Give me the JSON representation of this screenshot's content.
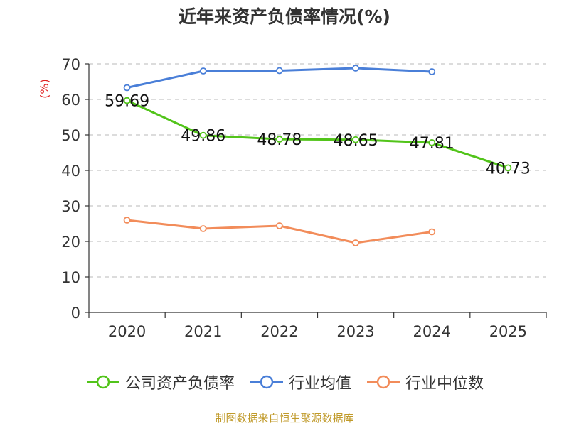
{
  "chart_data": {
    "type": "line",
    "title": "近年来资产负债率情况(%)",
    "ylabel": "(%)",
    "xlabel": "",
    "categories": [
      "2020",
      "2021",
      "2022",
      "2023",
      "2024",
      "2025"
    ],
    "ylim": [
      0,
      70
    ],
    "yticks": [
      0,
      10,
      20,
      30,
      40,
      50,
      60,
      70
    ],
    "grid": true,
    "legend_position": "bottom",
    "series": [
      {
        "name": "公司资产负债率",
        "color": "#52c41a",
        "values": [
          59.69,
          49.86,
          48.78,
          48.65,
          47.81,
          40.73
        ],
        "labels": [
          "59.69",
          "49.86",
          "48.78",
          "48.65",
          "47.81",
          "40.73"
        ]
      },
      {
        "name": "行业均值",
        "color": "#4a7fd8",
        "values": [
          63.3,
          68.0,
          68.1,
          68.8,
          67.8,
          null
        ]
      },
      {
        "name": "行业中位数",
        "color": "#f28c5a",
        "values": [
          26.0,
          23.6,
          24.4,
          19.6,
          22.7,
          null
        ]
      }
    ]
  },
  "source": "制图数据来自恒生聚源数据库"
}
